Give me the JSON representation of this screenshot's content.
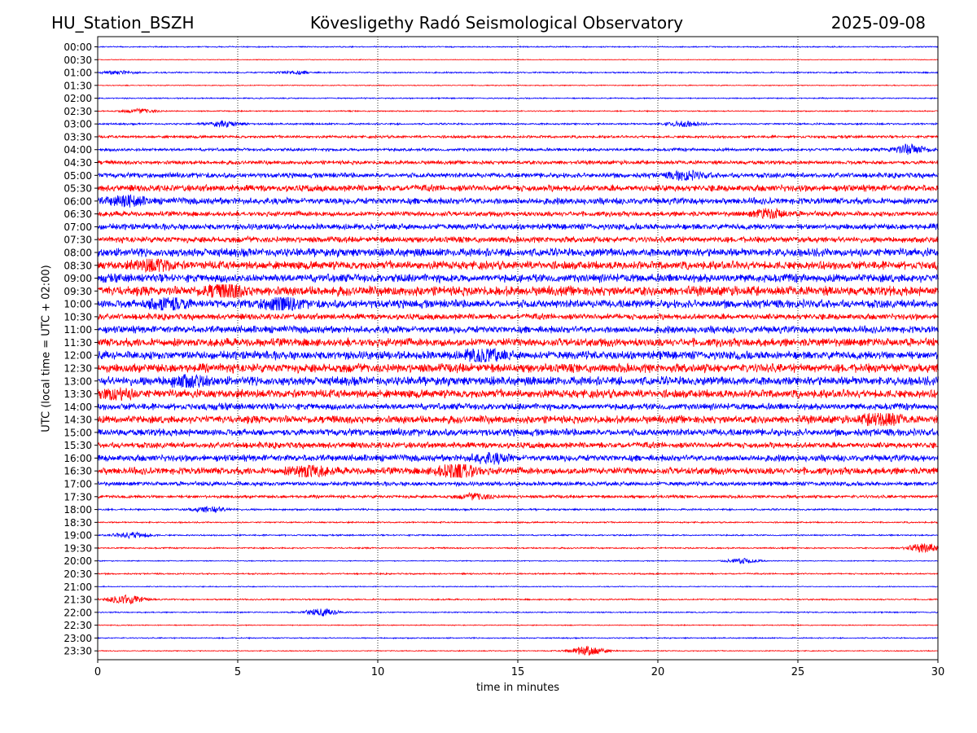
{
  "header": {
    "station": "HU_Station_BSZH",
    "observatory": "Kövesligethy Radó Seismological Observatory",
    "date": "2025-09-08"
  },
  "chart_data": {
    "type": "line",
    "title": "Kövesligethy Radó Seismological Observatory",
    "xlabel": "time in minutes",
    "ylabel": "UTC (local time = UTC + 02:00)",
    "xlim": [
      0,
      30
    ],
    "x_ticks": [
      0,
      5,
      10,
      15,
      20,
      25,
      30
    ],
    "x_gridlines": [
      5,
      10,
      15,
      20,
      25
    ],
    "grid": "vertical dotted",
    "colors": {
      "even_hour_rows": "#0000ff",
      "half_hour_rows": "#ff0000"
    },
    "row_labels": [
      "00:00",
      "00:30",
      "01:00",
      "01:30",
      "02:00",
      "02:30",
      "03:00",
      "03:30",
      "04:00",
      "04:30",
      "05:00",
      "05:30",
      "06:00",
      "06:30",
      "07:00",
      "07:30",
      "08:00",
      "08:30",
      "09:00",
      "09:30",
      "10:00",
      "10:30",
      "11:00",
      "11:30",
      "12:00",
      "12:30",
      "13:00",
      "13:30",
      "14:00",
      "14:30",
      "15:00",
      "15:30",
      "16:00",
      "16:30",
      "17:00",
      "17:30",
      "18:00",
      "18:30",
      "19:00",
      "19:30",
      "20:00",
      "20:30",
      "21:00",
      "21:30",
      "22:00",
      "22:30",
      "23:00",
      "23:30"
    ],
    "noise_level": [
      0.1,
      0.06,
      0.12,
      0.08,
      0.1,
      0.1,
      0.15,
      0.22,
      0.25,
      0.32,
      0.42,
      0.55,
      0.55,
      0.42,
      0.5,
      0.5,
      0.7,
      0.7,
      0.7,
      0.8,
      0.7,
      0.5,
      0.6,
      0.7,
      0.7,
      0.75,
      0.75,
      0.7,
      0.55,
      0.65,
      0.6,
      0.5,
      0.55,
      0.6,
      0.35,
      0.25,
      0.15,
      0.12,
      0.12,
      0.12,
      0.08,
      0.12,
      0.08,
      0.12,
      0.1,
      0.08,
      0.1,
      0.08
    ],
    "events": [
      {
        "row": "01:00",
        "t": 0.8,
        "amp": 0.3
      },
      {
        "row": "01:00",
        "t": 7.0,
        "amp": 0.3
      },
      {
        "row": "02:30",
        "t": 1.5,
        "amp": 0.4
      },
      {
        "row": "03:00",
        "t": 4.5,
        "amp": 0.5
      },
      {
        "row": "03:00",
        "t": 20.9,
        "amp": 0.5
      },
      {
        "row": "04:00",
        "t": 29.0,
        "amp": 0.9
      },
      {
        "row": "05:00",
        "t": 21.0,
        "amp": 0.7
      },
      {
        "row": "06:00",
        "t": 1.0,
        "amp": 0.9
      },
      {
        "row": "06:30",
        "t": 24.0,
        "amp": 0.8
      },
      {
        "row": "08:30",
        "t": 2.0,
        "amp": 1.0
      },
      {
        "row": "09:30",
        "t": 4.5,
        "amp": 1.4
      },
      {
        "row": "10:00",
        "t": 2.5,
        "amp": 1.3
      },
      {
        "row": "10:00",
        "t": 6.5,
        "amp": 1.3
      },
      {
        "row": "12:00",
        "t": 13.8,
        "amp": 1.2
      },
      {
        "row": "13:00",
        "t": 3.2,
        "amp": 1.0
      },
      {
        "row": "13:30",
        "t": 0.6,
        "amp": 1.0
      },
      {
        "row": "14:30",
        "t": 28.0,
        "amp": 1.2
      },
      {
        "row": "16:00",
        "t": 14.0,
        "amp": 0.8
      },
      {
        "row": "16:30",
        "t": 7.5,
        "amp": 1.0
      },
      {
        "row": "16:30",
        "t": 12.8,
        "amp": 1.8
      },
      {
        "row": "17:30",
        "t": 13.5,
        "amp": 0.5
      },
      {
        "row": "18:00",
        "t": 4.0,
        "amp": 0.6
      },
      {
        "row": "19:00",
        "t": 1.2,
        "amp": 0.6
      },
      {
        "row": "19:30",
        "t": 29.5,
        "amp": 0.8
      },
      {
        "row": "20:00",
        "t": 23.0,
        "amp": 0.5
      },
      {
        "row": "21:30",
        "t": 1.0,
        "amp": 0.9
      },
      {
        "row": "22:00",
        "t": 8.0,
        "amp": 0.7
      },
      {
        "row": "23:30",
        "t": 17.5,
        "amp": 1.0
      }
    ]
  }
}
